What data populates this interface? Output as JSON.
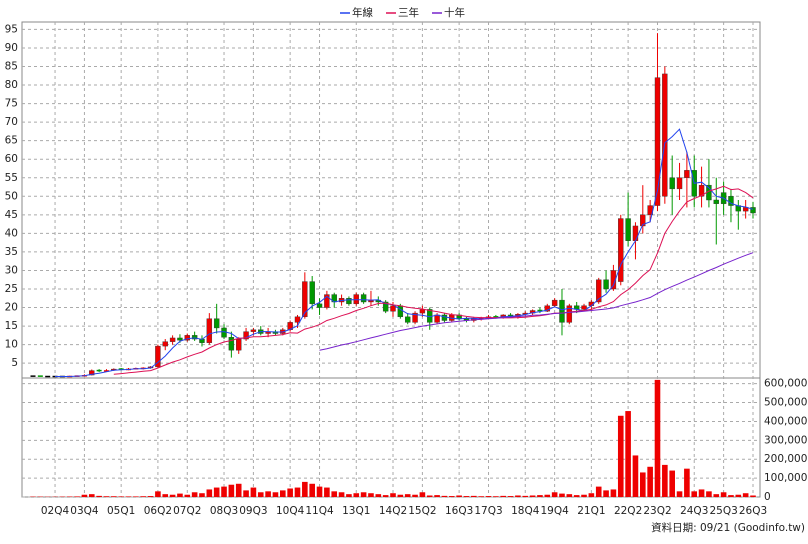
{
  "chart_data": [
    {
      "type": "candlestick",
      "legend": "top",
      "up_color": "#ee0000",
      "down_color": "#009900",
      "flat_color": "#000000",
      "categories": [
        null,
        null,
        null,
        "02Q4",
        null,
        null,
        null,
        "03Q4",
        null,
        null,
        null,
        null,
        "05Q1",
        null,
        null,
        null,
        null,
        "06Q2",
        null,
        null,
        null,
        "07Q2",
        null,
        null,
        null,
        null,
        "08Q3",
        null,
        null,
        null,
        "09Q3",
        null,
        null,
        null,
        null,
        "10Q4",
        null,
        null,
        null,
        "11Q4",
        null,
        null,
        null,
        null,
        "13Q1",
        null,
        null,
        null,
        null,
        "14Q2",
        null,
        null,
        null,
        "15Q2",
        null,
        null,
        null,
        null,
        "16Q3",
        null,
        null,
        null,
        "17Q3",
        null,
        null,
        null,
        null,
        "18Q4",
        null,
        null,
        null,
        "19Q4",
        null,
        null,
        null,
        null,
        "21Q1",
        null,
        null,
        null,
        null,
        "22Q2",
        null,
        null,
        null,
        "23Q2",
        null,
        null,
        null,
        null,
        "24Q3",
        null,
        null,
        null,
        "25Q3",
        null,
        null,
        null,
        "26Q3"
      ],
      "open": [
        1.5,
        1.5,
        1.4,
        1.4,
        1.4,
        1.4,
        1.5,
        1.6,
        1.8,
        3.0,
        2.9,
        3.1,
        3.4,
        3.3,
        3.5,
        3.6,
        3.7,
        4.0,
        9.6,
        10.8,
        11.8,
        11.2,
        12.5,
        11.5,
        10.5,
        17.0,
        14.5,
        12.0,
        8.5,
        11.5,
        13.5,
        14.0,
        13.0,
        13.5,
        13.0,
        14.0,
        16.0,
        17.5,
        27.0,
        21.0,
        20.0,
        23.5,
        21.5,
        22.5,
        21.0,
        23.5,
        21.5,
        22.0,
        21.5,
        19.0,
        20.5,
        17.5,
        16.0,
        18.5,
        19.5,
        16.0,
        18.0,
        16.5,
        18.0,
        17.0,
        16.5,
        17.0,
        17.2,
        17.5,
        17.3,
        18.0,
        17.5,
        18.2,
        18.5,
        19.2,
        19.0,
        20.5,
        22.0,
        16.0,
        20.5,
        19.5,
        20.5,
        21.5,
        27.5,
        25.0,
        27.0,
        44.0,
        38.0,
        42.0,
        45.0,
        47.5,
        50.0,
        55.0,
        52.0,
        55.0,
        57.0,
        50.0,
        53.0,
        49.0,
        51.0,
        50.0,
        47.5,
        46.0,
        47.0
      ],
      "high": [
        1.6,
        1.5,
        1.5,
        1.5,
        1.5,
        1.6,
        1.7,
        2.0,
        3.3,
        3.4,
        3.4,
        3.6,
        3.7,
        3.7,
        3.8,
        3.9,
        4.2,
        10.0,
        11.5,
        12.5,
        12.8,
        13.0,
        13.5,
        12.5,
        18.5,
        21.0,
        15.5,
        13.5,
        12.0,
        14.5,
        14.5,
        15.0,
        14.5,
        14.0,
        14.5,
        16.5,
        18.0,
        29.5,
        28.5,
        22.5,
        24.5,
        24.0,
        23.5,
        23.0,
        24.0,
        24.0,
        24.5,
        23.0,
        22.0,
        21.5,
        21.0,
        18.5,
        19.0,
        20.5,
        20.0,
        18.5,
        18.5,
        18.5,
        18.5,
        17.5,
        17.5,
        17.5,
        18.0,
        18.0,
        18.2,
        18.5,
        18.5,
        19.0,
        19.5,
        20.0,
        21.0,
        22.5,
        25.0,
        21.0,
        21.5,
        21.0,
        22.0,
        28.0,
        30.0,
        31.5,
        45.0,
        51.0,
        43.0,
        53.0,
        49.0,
        94.0,
        85.0,
        61.0,
        59.0,
        62.0,
        61.0,
        58.0,
        60.0,
        55.0,
        54.0,
        52.0,
        49.0,
        49.0,
        48.5
      ],
      "low": [
        1.4,
        1.4,
        1.3,
        1.3,
        1.3,
        1.3,
        1.4,
        1.5,
        1.7,
        2.6,
        2.7,
        2.9,
        3.1,
        3.1,
        3.3,
        3.3,
        3.5,
        3.8,
        8.5,
        10.0,
        10.5,
        10.8,
        11.0,
        9.5,
        10.0,
        13.0,
        11.5,
        6.5,
        7.5,
        11.0,
        12.5,
        12.5,
        12.0,
        12.5,
        12.5,
        13.5,
        14.5,
        17.0,
        19.5,
        18.0,
        19.5,
        20.0,
        20.5,
        20.5,
        20.5,
        21.0,
        20.5,
        20.5,
        18.5,
        17.5,
        17.0,
        15.5,
        15.5,
        17.5,
        14.0,
        15.5,
        16.0,
        16.0,
        16.5,
        16.0,
        16.0,
        16.5,
        16.8,
        17.0,
        17.0,
        17.2,
        17.0,
        17.5,
        18.0,
        18.5,
        18.8,
        20.0,
        12.5,
        15.5,
        18.5,
        19.0,
        19.0,
        21.0,
        24.0,
        24.5,
        26.0,
        36.5,
        33.0,
        40.0,
        43.0,
        46.0,
        48.0,
        45.0,
        49.0,
        47.0,
        47.0,
        47.0,
        47.0,
        37.0,
        45.0,
        43.0,
        41.0,
        44.0,
        44.0
      ],
      "close": [
        1.5,
        1.4,
        1.4,
        1.4,
        1.4,
        1.5,
        1.6,
        1.8,
        3.0,
        2.9,
        3.1,
        3.4,
        3.3,
        3.5,
        3.6,
        3.7,
        4.0,
        9.6,
        10.8,
        11.8,
        11.2,
        12.5,
        11.5,
        10.5,
        17.0,
        14.5,
        12.0,
        8.5,
        11.5,
        13.5,
        14.0,
        13.0,
        13.5,
        13.0,
        14.0,
        16.0,
        17.5,
        27.0,
        21.0,
        20.0,
        23.5,
        21.5,
        22.5,
        21.0,
        23.5,
        21.5,
        22.0,
        21.5,
        19.0,
        20.5,
        17.5,
        16.0,
        18.5,
        19.5,
        16.0,
        18.0,
        16.5,
        18.0,
        17.0,
        16.5,
        17.0,
        17.2,
        17.5,
        17.3,
        18.0,
        17.5,
        18.2,
        18.5,
        19.2,
        19.0,
        20.5,
        22.0,
        16.0,
        20.5,
        19.5,
        20.5,
        21.5,
        27.5,
        25.0,
        30.0,
        44.0,
        38.0,
        42.0,
        45.0,
        47.5,
        82.0,
        83.0,
        52.0,
        55.0,
        57.0,
        50.0,
        53.0,
        49.0,
        48.0,
        48.0,
        47.5,
        46.0,
        47.0,
        45.5
      ],
      "series": [
        {
          "name": "年線",
          "color": "#2244ee",
          "values": [
            null,
            null,
            null,
            1.4,
            1.4,
            1.4,
            1.5,
            1.6,
            2.0,
            2.3,
            2.7,
            3.1,
            3.2,
            3.3,
            3.5,
            3.5,
            3.7,
            5.2,
            6.9,
            9.1,
            10.9,
            11.6,
            11.8,
            11.4,
            12.9,
            13.4,
            13.5,
            13.0,
            11.6,
            11.9,
            12.8,
            13.5,
            13.5,
            13.4,
            13.4,
            14.1,
            15.1,
            18.6,
            20.4,
            21.4,
            23.0,
            21.5,
            21.9,
            22.1,
            22.1,
            22.1,
            22.0,
            22.1,
            21.0,
            20.8,
            19.5,
            18.3,
            18.1,
            17.9,
            17.5,
            18.0,
            17.5,
            17.1,
            16.9,
            17.1,
            17.1,
            16.9,
            17.1,
            17.2,
            17.5,
            17.6,
            17.8,
            18.1,
            18.6,
            18.9,
            19.3,
            20.2,
            19.4,
            19.8,
            19.5,
            19.1,
            20.5,
            22.3,
            23.6,
            26.0,
            31.6,
            35.0,
            38.0,
            42.4,
            43.1,
            51.6,
            64.4,
            66.1,
            68.1,
            61.8,
            53.5,
            53.8,
            52.3,
            50.0,
            49.5,
            48.1,
            47.4,
            47.1,
            46.5
          ]
        },
        {
          "name": "三年",
          "color": "#dd1155",
          "values": [
            null,
            null,
            null,
            null,
            null,
            null,
            null,
            null,
            null,
            null,
            null,
            2.0,
            2.2,
            2.4,
            2.6,
            2.8,
            3.0,
            3.7,
            4.5,
            5.3,
            5.9,
            6.7,
            7.4,
            8.0,
            9.1,
            10.0,
            10.7,
            11.1,
            11.7,
            11.8,
            12.1,
            12.1,
            12.3,
            12.5,
            12.7,
            13.2,
            13.1,
            14.2,
            14.7,
            15.4,
            16.5,
            17.1,
            17.8,
            18.4,
            19.2,
            19.8,
            20.5,
            21.1,
            21.2,
            20.7,
            20.5,
            20.1,
            19.8,
            19.6,
            19.2,
            18.9,
            18.5,
            18.1,
            17.9,
            17.6,
            17.4,
            17.3,
            17.3,
            17.3,
            17.2,
            17.2,
            17.3,
            17.4,
            17.6,
            17.8,
            18.1,
            18.5,
            18.5,
            18.8,
            19.0,
            19.2,
            19.5,
            20.2,
            20.7,
            21.6,
            23.5,
            24.8,
            26.6,
            28.6,
            30.2,
            34.7,
            40.0,
            43.2,
            46.0,
            48.5,
            49.4,
            50.2,
            51.4,
            52.0,
            52.7,
            51.8,
            52.0,
            51.0,
            49.6
          ]
        },
        {
          "name": "十年",
          "color": "#7722cc",
          "values": [
            null,
            null,
            null,
            null,
            null,
            null,
            null,
            null,
            null,
            null,
            null,
            null,
            null,
            null,
            null,
            null,
            null,
            null,
            null,
            null,
            null,
            null,
            null,
            null,
            null,
            null,
            null,
            null,
            null,
            null,
            null,
            null,
            null,
            null,
            null,
            null,
            null,
            null,
            null,
            8.5,
            8.9,
            9.4,
            9.9,
            10.3,
            10.8,
            11.3,
            11.8,
            12.3,
            12.8,
            13.3,
            13.8,
            14.2,
            14.6,
            15.0,
            15.3,
            15.6,
            15.9,
            16.1,
            16.3,
            16.5,
            16.7,
            16.8,
            17.0,
            17.1,
            17.3,
            17.4,
            17.6,
            17.7,
            17.9,
            18.0,
            18.2,
            18.4,
            18.5,
            18.7,
            18.8,
            19.0,
            19.2,
            19.4,
            19.6,
            19.9,
            20.5,
            21.0,
            21.5,
            22.1,
            22.7,
            23.8,
            24.8,
            25.7,
            26.5,
            27.4,
            28.2,
            29.1,
            30.0,
            30.8,
            31.7,
            32.5,
            33.3,
            34.1,
            34.8
          ]
        }
      ],
      "ylim": [
        1,
        97
      ],
      "yticks": [
        5,
        10,
        15,
        20,
        25,
        30,
        35,
        40,
        45,
        50,
        55,
        60,
        65,
        70,
        75,
        80,
        85,
        90,
        95
      ],
      "grid": true
    },
    {
      "type": "bar",
      "color": "#ee0000",
      "values": [
        2000,
        2000,
        1500,
        1500,
        2000,
        2500,
        3000,
        12000,
        15000,
        6000,
        4000,
        4000,
        3000,
        3000,
        3000,
        4000,
        5000,
        30000,
        15000,
        12000,
        18000,
        12000,
        25000,
        20000,
        40000,
        50000,
        55000,
        65000,
        70000,
        35000,
        50000,
        25000,
        30000,
        25000,
        35000,
        45000,
        50000,
        80000,
        70000,
        55000,
        50000,
        30000,
        25000,
        15000,
        20000,
        25000,
        20000,
        15000,
        10000,
        20000,
        12000,
        15000,
        12000,
        25000,
        8000,
        10000,
        6000,
        5000,
        8000,
        5000,
        6000,
        4000,
        5000,
        4000,
        6000,
        5000,
        8000,
        6000,
        8000,
        10000,
        12000,
        25000,
        18000,
        15000,
        10000,
        12000,
        20000,
        55000,
        35000,
        40000,
        430000,
        455000,
        220000,
        130000,
        160000,
        620000,
        170000,
        140000,
        30000,
        150000,
        30000,
        40000,
        30000,
        15000,
        25000,
        10000,
        12000,
        20000,
        8000
      ],
      "ylim": [
        0,
        630000
      ],
      "yticks": [
        0,
        {
          "value": 100000,
          "label": "100,000"
        },
        {
          "value": 200000,
          "label": "200,000"
        },
        {
          "value": 300000,
          "label": "300,000"
        },
        {
          "value": 400000,
          "label": "400,000"
        },
        {
          "value": 500000,
          "label": "500,000"
        },
        {
          "value": 600000,
          "label": "600,000"
        }
      ],
      "grid": true
    }
  ],
  "footer": "資料日期: 09/21 (Goodinfo.tw)"
}
